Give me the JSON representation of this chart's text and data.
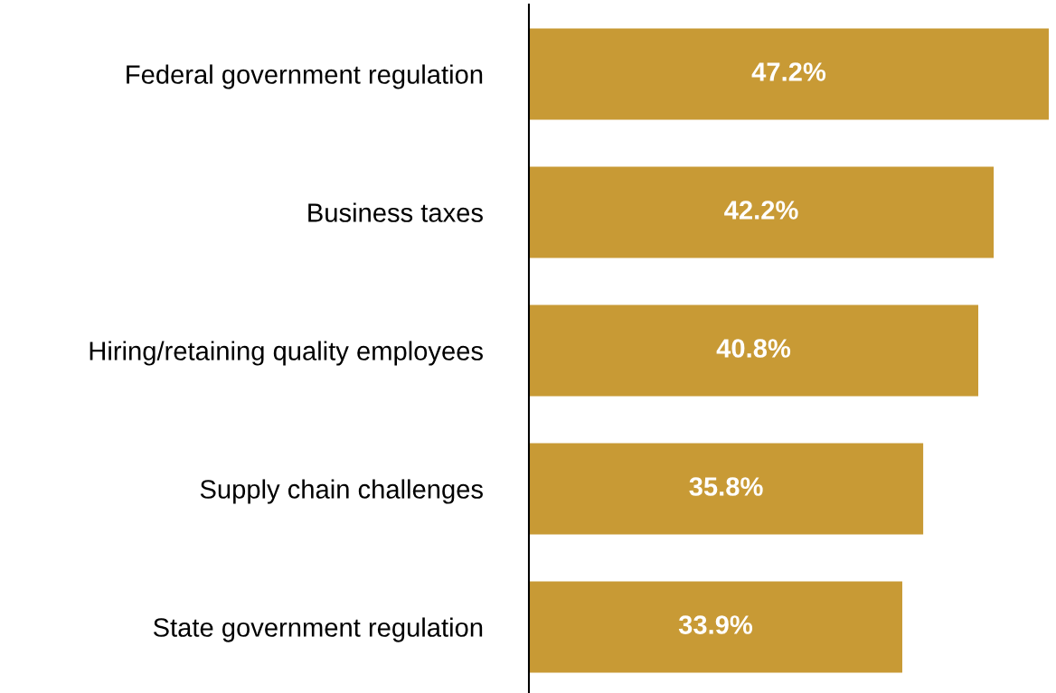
{
  "chart_data": {
    "type": "bar",
    "orientation": "horizontal",
    "categories": [
      "Federal government regulation",
      "Business taxes",
      "Hiring/retaining quality employees",
      "Supply chain challenges",
      "State government regulation"
    ],
    "values": [
      47.2,
      42.2,
      40.8,
      35.8,
      33.9
    ],
    "value_labels": [
      "47.2%",
      "42.2%",
      "40.8%",
      "35.8%",
      "33.9%"
    ],
    "color": "#c89a35"
  }
}
